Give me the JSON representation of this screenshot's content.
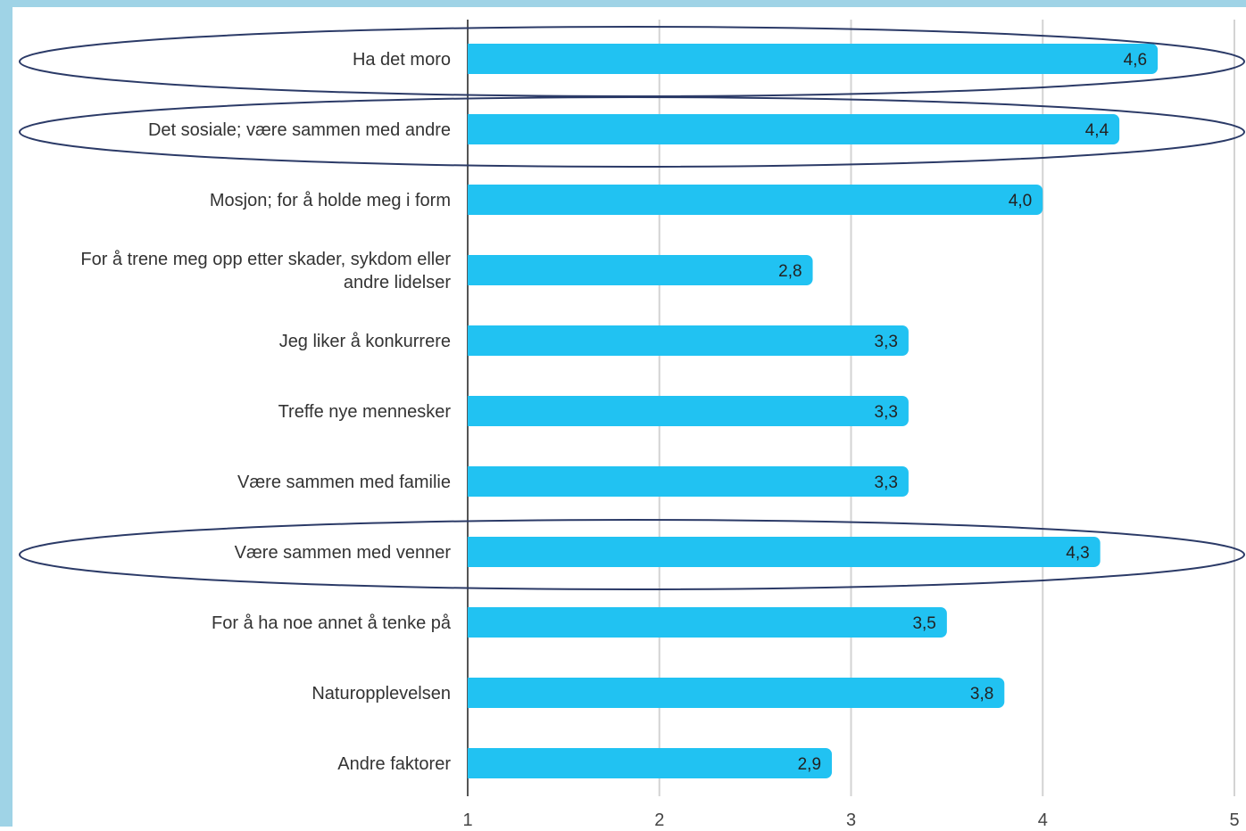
{
  "colors": {
    "frame": "#9fd3e6",
    "bar": "#21c2f2",
    "grid": "#d3d3d3",
    "axis": "#555555",
    "label_text": "#333333",
    "value_text": "#222222",
    "highlight_ellipse": "#2b3a67"
  },
  "chart_data": {
    "type": "bar",
    "orientation": "horizontal",
    "categories": [
      "Ha det moro",
      "Det sosiale; være sammen med andre",
      "Mosjon; for å holde meg i form",
      "For å trene meg opp etter skader, sykdom eller andre lidelser",
      "Jeg liker å konkurrere",
      "Treffe nye mennesker",
      "Være sammen med familie",
      "Være sammen med venner",
      "For å ha noe annet å tenke på",
      "Naturopplevelsen",
      "Andre faktorer"
    ],
    "category_lines": [
      [
        "Ha det moro"
      ],
      [
        "Det sosiale; være sammen med andre"
      ],
      [
        "Mosjon; for å holde meg i form"
      ],
      [
        "For å trene meg opp etter skader, sykdom eller",
        "andre lidelser"
      ],
      [
        "Jeg liker å konkurrere"
      ],
      [
        "Treffe nye mennesker"
      ],
      [
        "Være sammen med familie"
      ],
      [
        "Være sammen med venner"
      ],
      [
        "For å ha noe annet å tenke på"
      ],
      [
        "Naturopplevelsen"
      ],
      [
        "Andre faktorer"
      ]
    ],
    "values": [
      4.6,
      4.4,
      4.0,
      2.8,
      3.3,
      3.3,
      3.3,
      4.3,
      3.5,
      3.8,
      2.9
    ],
    "value_labels": [
      "4,6",
      "4,4",
      "4,0",
      "2,8",
      "3,3",
      "3,3",
      "3,3",
      "4,3",
      "3,5",
      "3,8",
      "2,9"
    ],
    "xlim": [
      1,
      5
    ],
    "xticks": [
      1,
      2,
      3,
      4,
      5
    ],
    "xtick_labels": [
      "1",
      "2",
      "3",
      "4",
      "5"
    ],
    "grid": true,
    "highlighted_categories": [
      "Ha det moro",
      "Det sosiale; være sammen med andre",
      "Være sammen med venner"
    ]
  }
}
